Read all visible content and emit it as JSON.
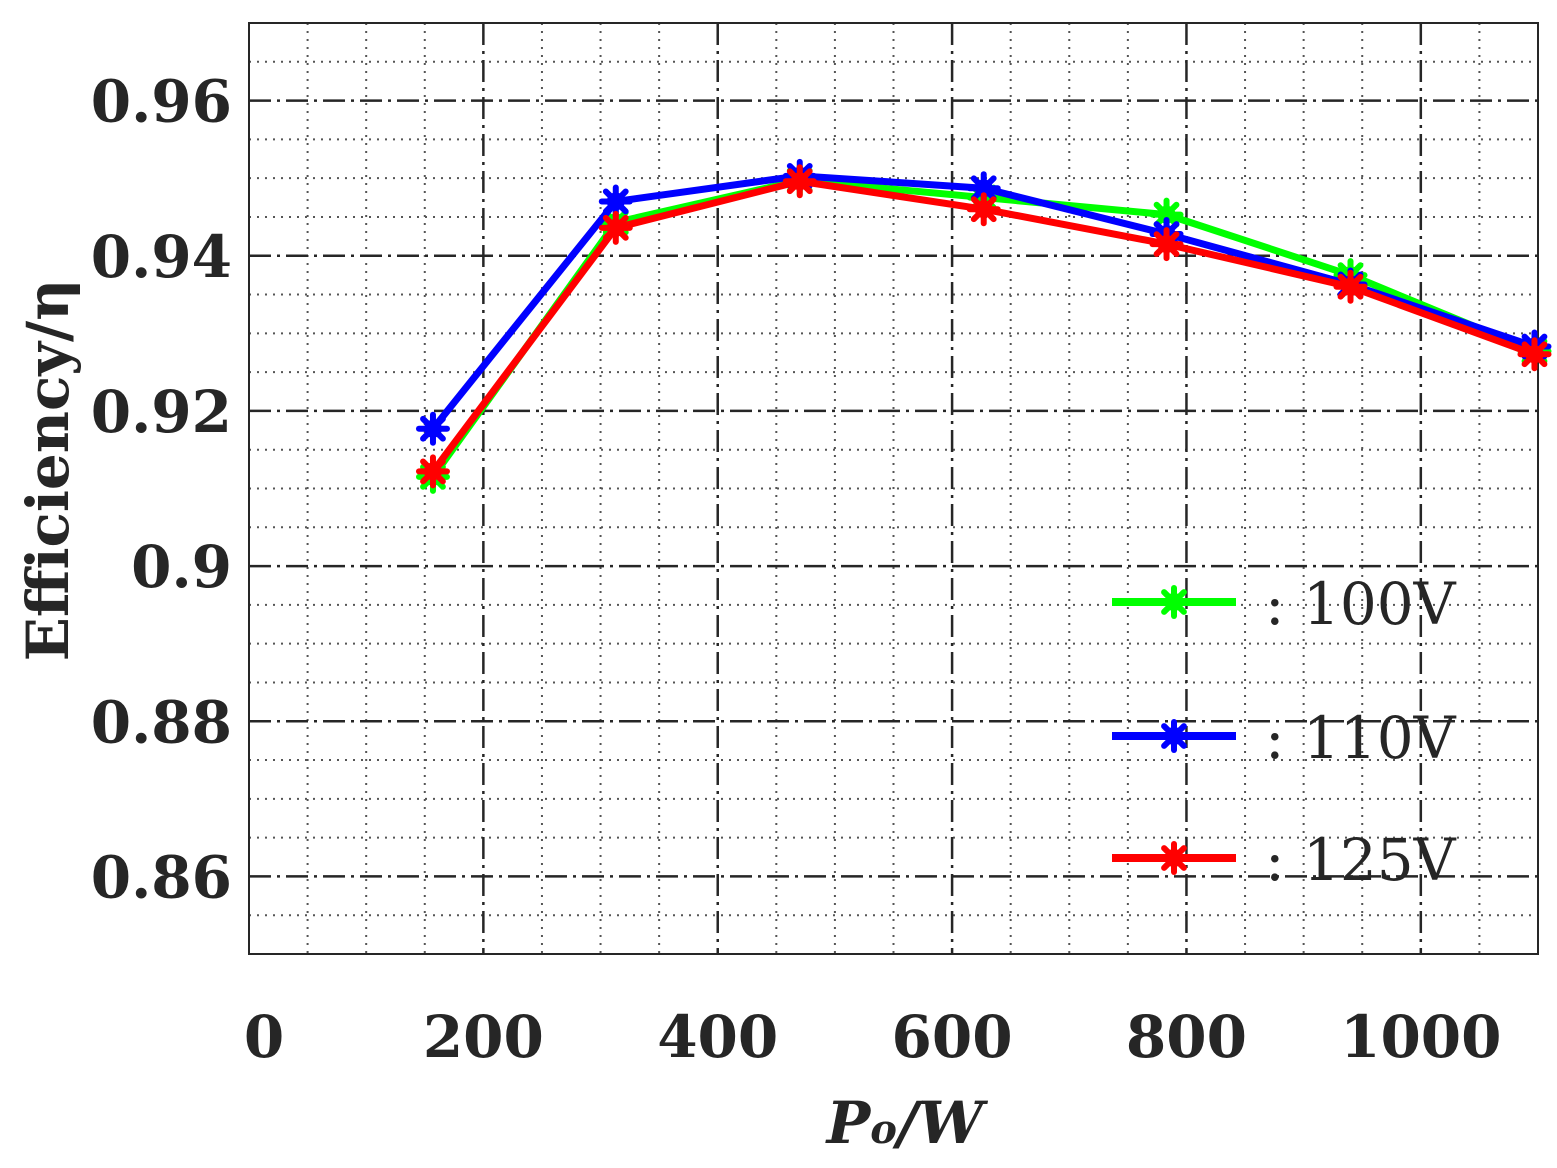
{
  "chart_data": {
    "type": "line",
    "title": "",
    "xlabel": "Po/W",
    "xlabel_main": "P",
    "xlabel_sub": "o",
    "xlabel_rest": "/W",
    "ylabel": "Efficiency/η",
    "xlim": [
      0,
      1100
    ],
    "ylim": [
      0.85,
      0.97
    ],
    "xticks": [
      0,
      200,
      400,
      600,
      800,
      1000
    ],
    "xtick_labels": [
      "0",
      "200",
      "400",
      "600",
      "800",
      "1000"
    ],
    "yticks": [
      0.86,
      0.88,
      0.9,
      0.92,
      0.94,
      0.96
    ],
    "ytick_labels": [
      "0.86",
      "0.88",
      "0.9",
      "0.92",
      "0.94",
      "0.96"
    ],
    "grid": true,
    "legend_position": "bottom-right",
    "x": [
      157,
      313,
      470,
      627,
      783,
      940,
      1097
    ],
    "series": [
      {
        "name": "100V",
        "legend_text": ":  100V",
        "color": "#00ff00",
        "values": [
          0.9115,
          0.9443,
          0.9497,
          0.9475,
          0.9453,
          0.9375,
          0.9277
        ]
      },
      {
        "name": "110V",
        "legend_text": ":  110V",
        "color": "#0000ff",
        "values": [
          0.9177,
          0.947,
          0.9503,
          0.9487,
          0.9428,
          0.9363,
          0.9283
        ]
      },
      {
        "name": "125V",
        "legend_text": ":  125V",
        "color": "#ff0000",
        "values": [
          0.9122,
          0.9436,
          0.9496,
          0.946,
          0.9415,
          0.936,
          0.9273
        ]
      }
    ]
  }
}
